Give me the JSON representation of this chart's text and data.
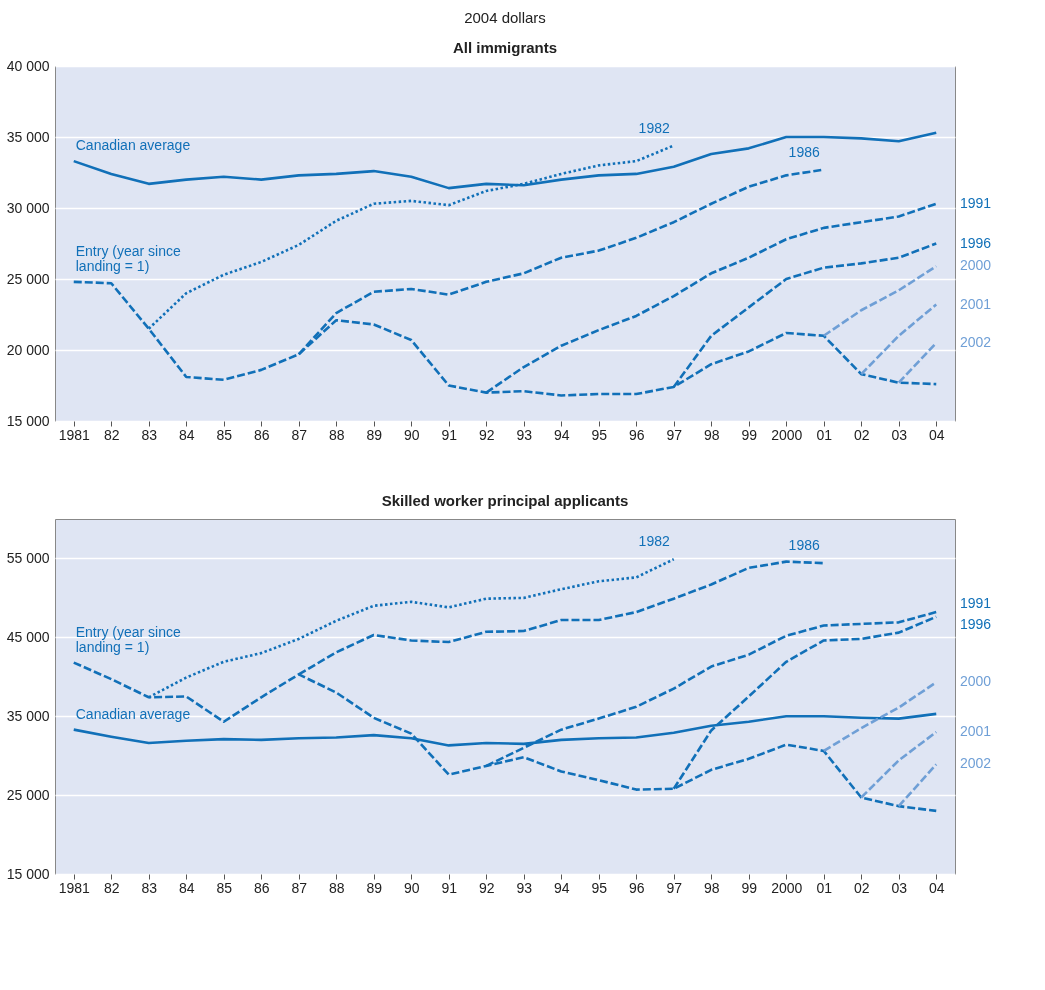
{
  "chart_data": [
    {
      "type": "line",
      "title": "All immigrants",
      "ylabel": "2004 dollars",
      "categories": [
        "1981",
        "82",
        "83",
        "84",
        "85",
        "86",
        "87",
        "88",
        "89",
        "90",
        "91",
        "92",
        "93",
        "94",
        "95",
        "96",
        "97",
        "98",
        "99",
        "2000",
        "01",
        "02",
        "03",
        "04"
      ],
      "ylim": [
        15000,
        40000
      ],
      "yticks": [
        {
          "value": 15000,
          "label": "15 000"
        },
        {
          "value": 20000,
          "label": "20 000"
        },
        {
          "value": 25000,
          "label": "25 000"
        },
        {
          "value": 30000,
          "label": "30 000"
        },
        {
          "value": 35000,
          "label": "35 000"
        },
        {
          "value": 40000,
          "label": "40 000"
        }
      ],
      "grid": "y",
      "series": [
        {
          "name": "Canadian average",
          "color": "#1170b8",
          "line_style": "solid",
          "values": [
            33300,
            32400,
            31700,
            32000,
            32200,
            32000,
            32300,
            32400,
            32600,
            32200,
            31400,
            31700,
            31600,
            32000,
            32300,
            32400,
            32900,
            33800,
            34200,
            35000,
            35000,
            34900,
            34700,
            35300
          ]
        },
        {
          "name": "Entry (year since landing = 1)",
          "color": "#1170b8",
          "line_style": "dashed",
          "values": [
            24800,
            24700,
            21500,
            18100,
            17900,
            18600,
            19700,
            22100,
            21800,
            20700,
            17500,
            17000,
            17100,
            16800,
            16900,
            16900,
            17400,
            19000,
            19900,
            21200,
            21000,
            18300,
            17700,
            17600
          ]
        },
        {
          "name": "1982",
          "color": "#1170b8",
          "line_style": "dotted",
          "values": [
            null,
            null,
            21500,
            24000,
            25300,
            26200,
            27400,
            29100,
            30300,
            30500,
            30200,
            31200,
            31700,
            32400,
            33000,
            33300,
            34400,
            null,
            null,
            null,
            null,
            null,
            null,
            null
          ]
        },
        {
          "name": "1986",
          "color": "#1170b8",
          "line_style": "dashed",
          "values": [
            null,
            null,
            null,
            null,
            null,
            null,
            19700,
            22600,
            24100,
            24300,
            23900,
            24800,
            25400,
            26500,
            27000,
            27900,
            29000,
            30300,
            31500,
            32300,
            32700,
            null,
            null,
            null
          ]
        },
        {
          "name": "1991",
          "color": "#1170b8",
          "line_style": "dashed",
          "values": [
            null,
            null,
            null,
            null,
            null,
            null,
            null,
            null,
            null,
            null,
            null,
            17000,
            18800,
            20300,
            21400,
            22400,
            23800,
            25400,
            26500,
            27800,
            28600,
            29000,
            29400,
            30300
          ]
        },
        {
          "name": "1996",
          "color": "#1170b8",
          "line_style": "dashed",
          "values": [
            null,
            null,
            null,
            null,
            null,
            null,
            null,
            null,
            null,
            null,
            null,
            null,
            null,
            null,
            null,
            null,
            17400,
            21000,
            23000,
            25000,
            25800,
            26100,
            26500,
            27500
          ]
        },
        {
          "name": "2000",
          "color": "#6f9fd6",
          "line_style": "dashed",
          "values": [
            null,
            null,
            null,
            null,
            null,
            null,
            null,
            null,
            null,
            null,
            null,
            null,
            null,
            null,
            null,
            null,
            null,
            null,
            null,
            null,
            21000,
            22800,
            24200,
            25900
          ]
        },
        {
          "name": "2001",
          "color": "#6f9fd6",
          "line_style": "dashed",
          "values": [
            null,
            null,
            null,
            null,
            null,
            null,
            null,
            null,
            null,
            null,
            null,
            null,
            null,
            null,
            null,
            null,
            null,
            null,
            null,
            null,
            null,
            18300,
            21000,
            23200
          ]
        },
        {
          "name": "2002",
          "color": "#6f9fd6",
          "line_style": "dashed",
          "values": [
            null,
            null,
            null,
            null,
            null,
            null,
            null,
            null,
            null,
            null,
            null,
            null,
            null,
            null,
            null,
            null,
            null,
            null,
            null,
            null,
            null,
            null,
            17700,
            20500
          ]
        }
      ]
    },
    {
      "type": "line",
      "title": "Skilled worker principal applicants",
      "categories": [
        "1981",
        "82",
        "83",
        "84",
        "85",
        "86",
        "87",
        "88",
        "89",
        "90",
        "91",
        "92",
        "93",
        "94",
        "95",
        "96",
        "97",
        "98",
        "99",
        "2000",
        "01",
        "02",
        "03",
        "04"
      ],
      "ylim": [
        15000,
        60000
      ],
      "yticks": [
        {
          "value": 15000,
          "label": "15 000"
        },
        {
          "value": 25000,
          "label": "25 000"
        },
        {
          "value": 35000,
          "label": "35 000"
        },
        {
          "value": 45000,
          "label": "45 000"
        },
        {
          "value": 55000,
          "label": "55 000"
        }
      ],
      "grid": "y",
      "series": [
        {
          "name": "Canadian average",
          "color": "#1170b8",
          "line_style": "solid",
          "values": [
            33300,
            32400,
            31600,
            31900,
            32100,
            32000,
            32200,
            32300,
            32600,
            32200,
            31300,
            31600,
            31500,
            32000,
            32200,
            32300,
            32900,
            33800,
            34300,
            35000,
            35000,
            34800,
            34700,
            35300
          ]
        },
        {
          "name": "Entry (year since landing = 1)",
          "color": "#1170b8",
          "line_style": "dashed",
          "values": [
            41800,
            39700,
            37400,
            37500,
            34300,
            37400,
            40300,
            38000,
            34800,
            32800,
            27600,
            28700,
            29800,
            28000,
            26900,
            25700,
            25800,
            28200,
            29600,
            31400,
            30600,
            24700,
            23600,
            23000
          ]
        },
        {
          "name": "1982",
          "color": "#1170b8",
          "line_style": "dotted",
          "values": [
            null,
            null,
            37400,
            39900,
            41900,
            43000,
            44800,
            47100,
            49000,
            49500,
            48800,
            49900,
            50000,
            51100,
            52100,
            52600,
            54900,
            null,
            null,
            null,
            null,
            null,
            null,
            null
          ]
        },
        {
          "name": "1986",
          "color": "#1170b8",
          "line_style": "dashed",
          "values": [
            null,
            null,
            null,
            null,
            null,
            null,
            40300,
            43100,
            45300,
            44600,
            44400,
            45700,
            45800,
            47200,
            47200,
            48200,
            49900,
            51700,
            53800,
            54600,
            54400,
            null,
            null,
            null
          ]
        },
        {
          "name": "1991",
          "color": "#1170b8",
          "line_style": "dashed",
          "values": [
            null,
            null,
            null,
            null,
            null,
            null,
            null,
            null,
            null,
            null,
            null,
            28700,
            31000,
            33300,
            34700,
            36200,
            38500,
            41300,
            42800,
            45200,
            46500,
            46700,
            46900,
            48200
          ]
        },
        {
          "name": "1996",
          "color": "#1170b8",
          "line_style": "dashed",
          "values": [
            null,
            null,
            null,
            null,
            null,
            null,
            null,
            null,
            null,
            null,
            null,
            null,
            null,
            null,
            null,
            null,
            25800,
            33200,
            37500,
            41900,
            44600,
            44800,
            45600,
            47600
          ]
        },
        {
          "name": "2000",
          "color": "#6f9fd6",
          "line_style": "dashed",
          "values": [
            null,
            null,
            null,
            null,
            null,
            null,
            null,
            null,
            null,
            null,
            null,
            null,
            null,
            null,
            null,
            null,
            null,
            null,
            null,
            null,
            30600,
            33500,
            36100,
            39300
          ]
        },
        {
          "name": "2001",
          "color": "#6f9fd6",
          "line_style": "dashed",
          "values": [
            null,
            null,
            null,
            null,
            null,
            null,
            null,
            null,
            null,
            null,
            null,
            null,
            null,
            null,
            null,
            null,
            null,
            null,
            null,
            null,
            null,
            24700,
            29400,
            33000
          ]
        },
        {
          "name": "2002",
          "color": "#6f9fd6",
          "line_style": "dashed",
          "values": [
            null,
            null,
            null,
            null,
            null,
            null,
            null,
            null,
            null,
            null,
            null,
            null,
            null,
            null,
            null,
            null,
            null,
            null,
            null,
            null,
            null,
            null,
            23600,
            28900
          ]
        }
      ]
    }
  ]
}
